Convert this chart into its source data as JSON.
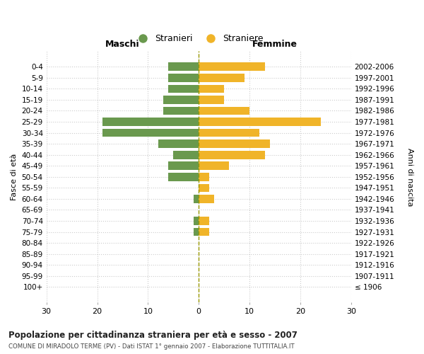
{
  "age_groups": [
    "0-4",
    "5-9",
    "10-14",
    "15-19",
    "20-24",
    "25-29",
    "30-34",
    "35-39",
    "40-44",
    "45-49",
    "50-54",
    "55-59",
    "60-64",
    "65-69",
    "70-74",
    "75-79",
    "80-84",
    "85-89",
    "90-94",
    "95-99",
    "100+"
  ],
  "birth_years": [
    "2002-2006",
    "1997-2001",
    "1992-1996",
    "1987-1991",
    "1982-1986",
    "1977-1981",
    "1972-1976",
    "1967-1971",
    "1962-1966",
    "1957-1961",
    "1952-1956",
    "1947-1951",
    "1942-1946",
    "1937-1941",
    "1932-1936",
    "1927-1931",
    "1922-1926",
    "1917-1921",
    "1912-1916",
    "1907-1911",
    "≤ 1906"
  ],
  "males": [
    6,
    6,
    6,
    7,
    7,
    19,
    19,
    8,
    5,
    6,
    6,
    0,
    1,
    0,
    1,
    1,
    0,
    0,
    0,
    0,
    0
  ],
  "females": [
    13,
    9,
    5,
    5,
    10,
    24,
    12,
    14,
    13,
    6,
    2,
    2,
    3,
    0,
    2,
    2,
    0,
    0,
    0,
    0,
    0
  ],
  "male_color": "#6a994e",
  "female_color": "#f0b429",
  "center_line_color": "#999900",
  "grid_color": "#cccccc",
  "bg_color": "#ffffff",
  "xlim": 30,
  "title": "Popolazione per cittadinanza straniera per età e sesso - 2007",
  "subtitle": "COMUNE DI MIRADOLO TERME (PV) - Dati ISTAT 1° gennaio 2007 - Elaborazione TUTTITALIA.IT",
  "ylabel_left": "Fasce di età",
  "ylabel_right": "Anni di nascita",
  "xlabel_maschi": "Maschi",
  "xlabel_femmine": "Femmine",
  "legend_male": "Stranieri",
  "legend_female": "Straniere",
  "xticks": [
    -30,
    -20,
    -10,
    0,
    10,
    20,
    30
  ],
  "xticklabels": [
    "30",
    "20",
    "10",
    "0",
    "10",
    "20",
    "30"
  ]
}
